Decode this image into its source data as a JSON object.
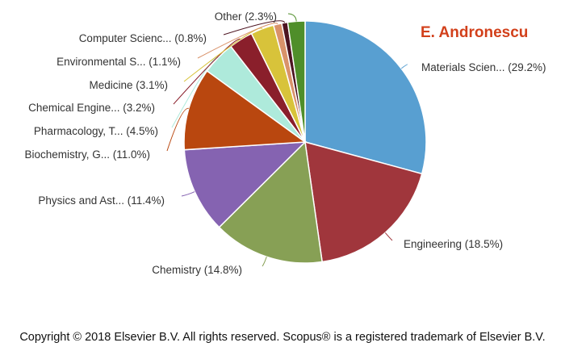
{
  "chart_data": {
    "type": "pie",
    "title": "E. Andronescu",
    "start_angle_deg": 0,
    "direction": "clockwise",
    "slices": [
      {
        "label": "Materials Scien...",
        "value": 29.2,
        "display": "Materials Scien... (29.2%)",
        "color": "#589fd1"
      },
      {
        "label": "Engineering",
        "value": 18.5,
        "display": "Engineering (18.5%)",
        "color": "#a0363c"
      },
      {
        "label": "Chemistry",
        "value": 14.8,
        "display": "Chemistry (14.8%)",
        "color": "#87a055"
      },
      {
        "label": "Physics and Ast...",
        "value": 11.4,
        "display": "Physics and Ast... (11.4%)",
        "color": "#8563b1"
      },
      {
        "label": "Biochemistry, G...",
        "value": 11.0,
        "display": "Biochemistry, G... (11.0%)",
        "color": "#b9470f"
      },
      {
        "label": "Pharmacology, T...",
        "value": 4.5,
        "display": "Pharmacology, T... (4.5%)",
        "color": "#aeeadb"
      },
      {
        "label": "Chemical Engine...",
        "value": 3.2,
        "display": "Chemical Engine... (3.2%)",
        "color": "#8a1f2b"
      },
      {
        "label": "Medicine",
        "value": 3.1,
        "display": "Medicine (3.1%)",
        "color": "#d8c33a"
      },
      {
        "label": "Environmental S...",
        "value": 1.1,
        "display": "Environmental S... (1.1%)",
        "color": "#d9926a"
      },
      {
        "label": "Computer Scienc...",
        "value": 0.8,
        "display": "Computer Scienc... (0.8%)",
        "color": "#4d1421"
      },
      {
        "label": "Other",
        "value": 2.3,
        "display": "Other (2.3%)",
        "color": "#4f8e2a"
      }
    ]
  },
  "footer": {
    "copyright": "Copyright © 2018 Elsevier B.V. All rights reserved. Scopus® is a registered trademark of Elsevier B.V."
  }
}
